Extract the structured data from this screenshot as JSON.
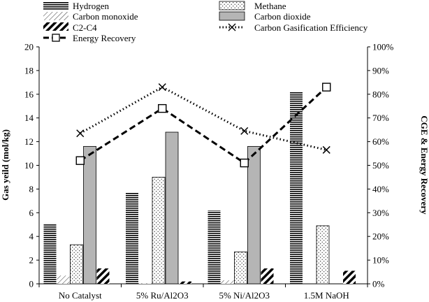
{
  "chart_data": {
    "type": "bar",
    "categories": [
      "No Catalyst",
      "5% Ru/Al2O3",
      "5% Ni/Al2O3",
      "1.5M NaOH"
    ],
    "series": [
      {
        "name": "Hydrogen",
        "kind": "bar",
        "axis": "left",
        "pattern": "hlines",
        "values": [
          5.1,
          7.7,
          6.2,
          16.2
        ]
      },
      {
        "name": "Carbon monoxide",
        "kind": "bar",
        "axis": "left",
        "pattern": "diag-thin",
        "values": [
          0.7,
          0.05,
          0.3,
          0
        ]
      },
      {
        "name": "Methane",
        "kind": "bar",
        "axis": "left",
        "pattern": "dots",
        "values": [
          3.3,
          9.0,
          2.7,
          4.9
        ]
      },
      {
        "name": "Carbon dioxide",
        "kind": "bar",
        "axis": "left",
        "pattern": "gray",
        "values": [
          11.6,
          12.8,
          11.6,
          0
        ]
      },
      {
        "name": "C2-C4",
        "kind": "bar",
        "axis": "left",
        "pattern": "diag-thick",
        "values": [
          1.3,
          0.2,
          1.3,
          1.1
        ]
      },
      {
        "name": "Energy Recovery",
        "kind": "line",
        "axis": "right",
        "marker": "square",
        "values": [
          52,
          74,
          51,
          83
        ]
      },
      {
        "name": "Carbon Gasification Efficiency",
        "kind": "line",
        "axis": "right",
        "marker": "x",
        "values": [
          63.5,
          83,
          64.5,
          56.5
        ]
      }
    ],
    "ylabel": "Gas yeild (mol/kg)",
    "ylabel_right": "CGE & Energy Recovery",
    "ylim": [
      0,
      20
    ],
    "ylim_right": [
      0,
      100
    ],
    "yticks": [
      "0",
      "2",
      "4",
      "6",
      "8",
      "10",
      "12",
      "14",
      "16",
      "18",
      "20"
    ],
    "yticks_right": [
      "0%",
      "10%",
      "20%",
      "30%",
      "40%",
      "50%",
      "60%",
      "70%",
      "80%",
      "90%",
      "100%"
    ],
    "grid": false,
    "legend_position": "top"
  }
}
